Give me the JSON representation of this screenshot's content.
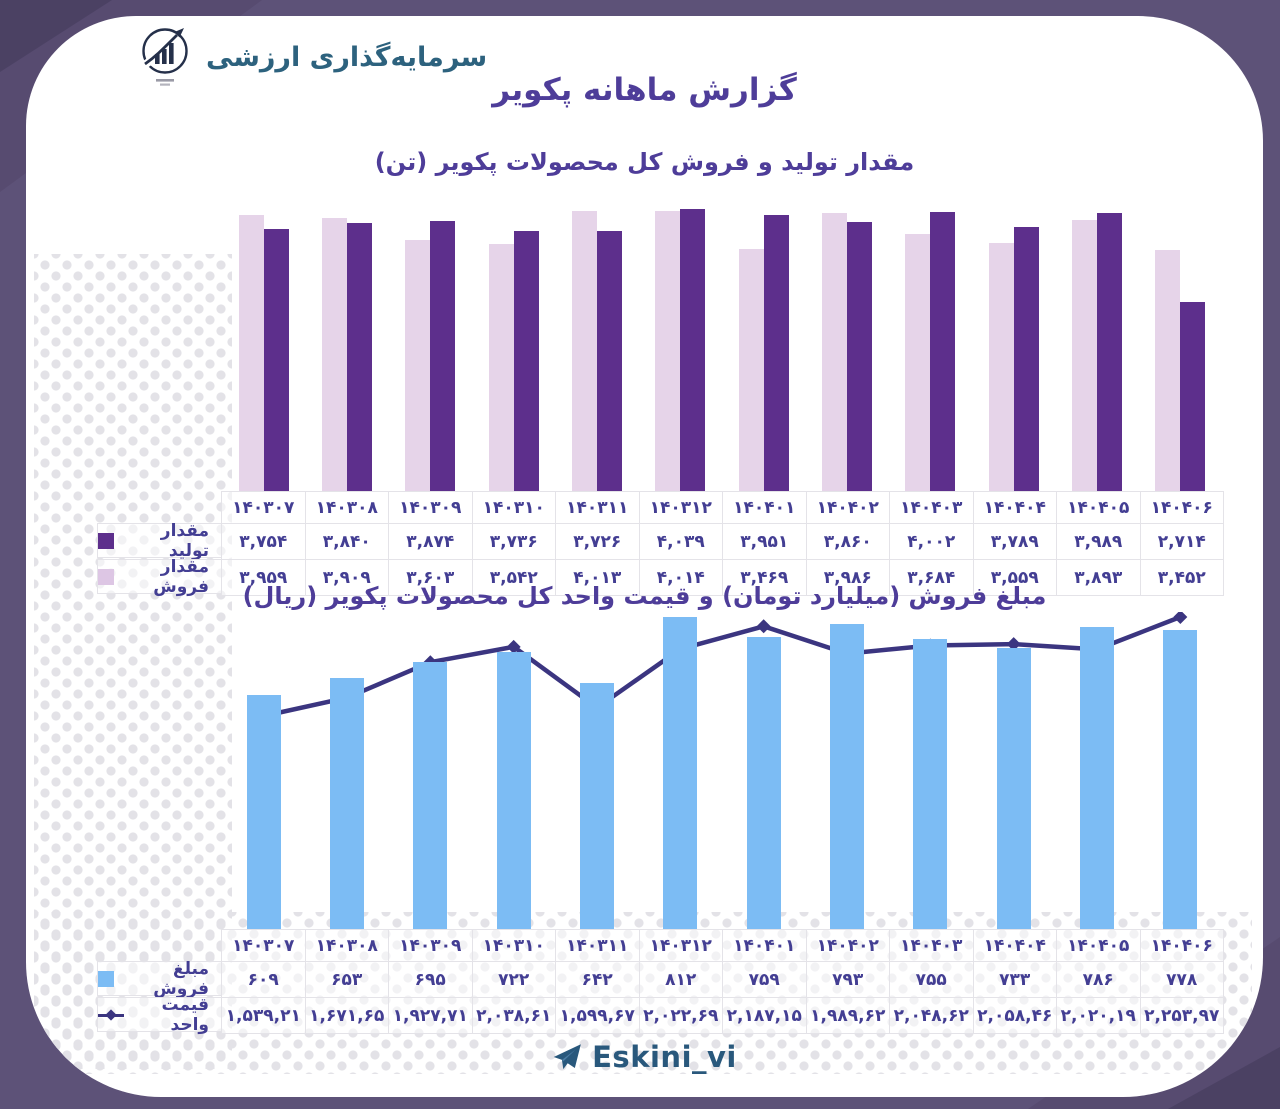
{
  "header": {
    "brand": "سرمایه‌گذاری ارزشی",
    "title": "گزارش ماهانه پکویر"
  },
  "months_fa": [
    "۱۴۰۳۰۷",
    "۱۴۰۳۰۸",
    "۱۴۰۳۰۹",
    "۱۴۰۳۱۰",
    "۱۴۰۳۱۱",
    "۱۴۰۳۱۲",
    "۱۴۰۴۰۱",
    "۱۴۰۴۰۲",
    "۱۴۰۴۰۳",
    "۱۴۰۴۰۴",
    "۱۴۰۴۰۵",
    "۱۴۰۴۰۶"
  ],
  "chart1": {
    "title": "مقدار تولید و فروش کل محصولات پکویر (تن)",
    "legend_production": "مقدار تولید",
    "legend_sales": "مقدار فروش",
    "production_fa": [
      "۳,۷۵۴",
      "۳,۸۴۰",
      "۳,۸۷۴",
      "۳,۷۳۶",
      "۳,۷۲۶",
      "۴,۰۳۹",
      "۳,۹۵۱",
      "۳,۸۶۰",
      "۴,۰۰۲",
      "۳,۷۸۹",
      "۳,۹۸۹",
      "۲,۷۱۴"
    ],
    "sales_fa": [
      "۳,۹۵۹",
      "۳,۹۰۹",
      "۳,۶۰۳",
      "۳,۵۴۲",
      "۴,۰۱۳",
      "۴,۰۱۴",
      "۳,۴۶۹",
      "۳,۹۸۶",
      "۳,۶۸۴",
      "۳,۵۵۹",
      "۳,۸۹۳",
      "۳,۴۵۲"
    ]
  },
  "chart2": {
    "title": "مبلغ فروش (میلیارد تومان) و قیمت واحد کل محصولات پکویر (ریال)",
    "legend_amount": "مبلغ فروش",
    "legend_price": "قیمت واحد",
    "amount_fa": [
      "۶۰۹",
      "۶۵۳",
      "۶۹۵",
      "۷۲۲",
      "۶۴۲",
      "۸۱۲",
      "۷۵۹",
      "۷۹۳",
      "۷۵۵",
      "۷۳۳",
      "۷۸۶",
      "۷۷۸"
    ],
    "price_fa": [
      "۱,۵۳۹,۲۱",
      "۱,۶۷۱,۶۵",
      "۱,۹۲۷,۷۱",
      "۲,۰۳۸,۶۱",
      "۱,۵۹۹,۶۷",
      "۲,۰۲۲,۶۹",
      "۲,۱۸۷,۱۵",
      "۱,۹۸۹,۶۲",
      "۲,۰۴۸,۶۲",
      "۲,۰۵۸,۴۶",
      "۲,۰۲۰,۱۹",
      "۲,۲۵۳,۹۷"
    ]
  },
  "footer": {
    "handle": "Eskini_vi"
  },
  "colors": {
    "outer_bg": "#5d5278",
    "corner_shade": "#574b70",
    "corner_shade_dark": "#4b4163",
    "production_bar": "#5d2f8c",
    "sales_bar": "#e6d4e9",
    "amount_bar": "#7cbcf4",
    "price_line": "#3b3580",
    "title_text": "#4e3d99",
    "table_text": "#433e93",
    "brand_text": "#2d627e",
    "footer_text": "#29587c"
  },
  "chart_data": [
    {
      "type": "bar",
      "title": "مقدار تولید و فروش کل محصولات پکویر (تن)",
      "categories": [
        "۱۴۰۳۰۷",
        "۱۴۰۳۰۸",
        "۱۴۰۳۰۹",
        "۱۴۰۳۱۰",
        "۱۴۰۳۱۱",
        "۱۴۰۳۱۲",
        "۱۴۰۴۰۱",
        "۱۴۰۴۰۲",
        "۱۴۰۴۰۳",
        "۱۴۰۴۰۴",
        "۱۴۰۴۰۵",
        "۱۴۰۴۰۶"
      ],
      "series": [
        {
          "name": "مقدار تولید",
          "color": "#5d2f8c",
          "values": [
            3754,
            3840,
            3874,
            3736,
            3726,
            4039,
            3951,
            3860,
            4002,
            3789,
            3989,
            2714
          ]
        },
        {
          "name": "مقدار فروش",
          "color": "#e6d4e9",
          "values": [
            3959,
            3909,
            3603,
            3542,
            4013,
            4014,
            3469,
            3986,
            3684,
            3559,
            3893,
            3452
          ]
        }
      ],
      "ylabel": "تن",
      "ylim": [
        0,
        4100
      ],
      "grid": false,
      "legend_position": "table-left"
    },
    {
      "type": "bar+line",
      "title": "مبلغ فروش (میلیارد تومان) و قیمت واحد کل محصولات پکویر (ریال)",
      "categories": [
        "۱۴۰۳۰۷",
        "۱۴۰۳۰۸",
        "۱۴۰۳۰۹",
        "۱۴۰۳۱۰",
        "۱۴۰۳۱۱",
        "۱۴۰۳۱۲",
        "۱۴۰۴۰۱",
        "۱۴۰۴۰۲",
        "۱۴۰۴۰۳",
        "۱۴۰۴۰۴",
        "۱۴۰۴۰۵",
        "۱۴۰۴۰۶"
      ],
      "series": [
        {
          "name": "مبلغ فروش",
          "type": "bar",
          "color": "#7cbcf4",
          "values": [
            609,
            653,
            695,
            722,
            642,
            812,
            759,
            793,
            755,
            733,
            786,
            778
          ]
        },
        {
          "name": "قیمت واحد",
          "type": "line",
          "color": "#3b3580",
          "values": [
            1539.21,
            1671.65,
            1927.71,
            2038.61,
            1599.67,
            2022.69,
            2187.15,
            1989.62,
            2048.62,
            2058.46,
            2020.19,
            2253.97
          ]
        }
      ],
      "ylim": [
        0,
        825
      ],
      "y2lim": [
        1450,
        2350
      ],
      "grid": false,
      "legend_position": "table-left"
    }
  ]
}
